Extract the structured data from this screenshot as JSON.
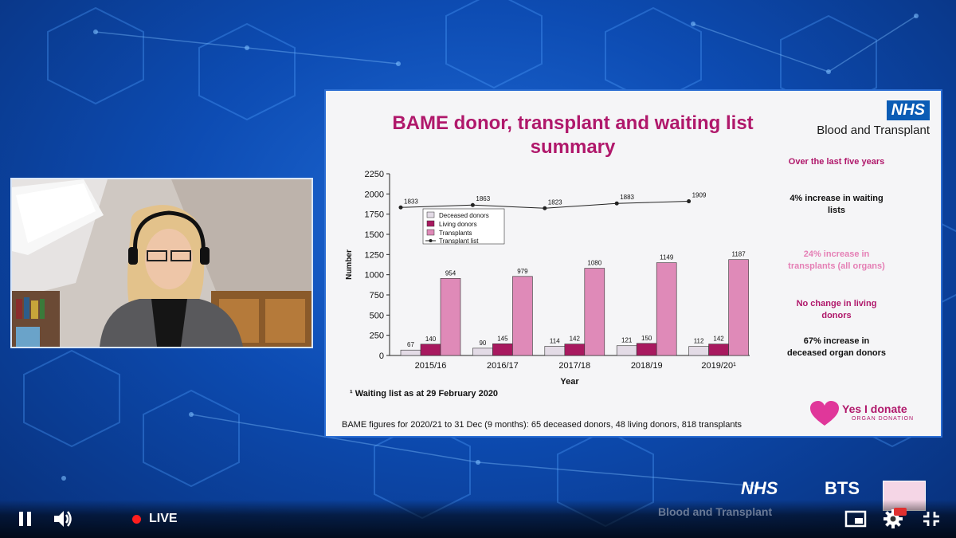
{
  "slide": {
    "title_line1": "BAME donor, transplant and waiting list",
    "title_line2": "summary",
    "logo": "NHS",
    "org": "Blood and Transplant",
    "facts": [
      {
        "text": "Over the last five years",
        "color": "#b0186b"
      },
      {
        "text": "4% increase in waiting lists",
        "color": "#111111"
      },
      {
        "text": "24% increase in transplants (all organs)",
        "color": "#e57fb5"
      },
      {
        "text": "No change in living donors",
        "color": "#b0186b"
      },
      {
        "text": "67% increase in deceased organ donors",
        "color": "#111111"
      }
    ],
    "footnote": "¹ Waiting list as at 29 February 2020",
    "bame_figures": "BAME figures for 2020/21 to 31 Dec (9 months): 65 deceased donors, 48 living donors, 818 transplants",
    "campaign_title": "Yes I donate",
    "campaign_sub": "ORGAN DONATION"
  },
  "chart_data": {
    "type": "bar",
    "categories": [
      "2015/16",
      "2016/17",
      "2017/18",
      "2018/19",
      "2019/20¹"
    ],
    "xlabel": "Year",
    "ylabel": "Number",
    "ylim": [
      0,
      2250
    ],
    "yticks": [
      0,
      250,
      500,
      750,
      1000,
      1250,
      1500,
      1750,
      2000,
      2250
    ],
    "series": [
      {
        "name": "Deceased donors",
        "values": [
          67,
          90,
          114,
          121,
          112
        ],
        "color": "#e3dbe6"
      },
      {
        "name": "Living donors",
        "values": [
          140,
          145,
          142,
          150,
          142
        ],
        "color": "#a8195f"
      },
      {
        "name": "Transplants",
        "values": [
          954,
          979,
          1080,
          1149,
          1187
        ],
        "color": "#df8ab8"
      }
    ],
    "line_series": {
      "name": "Transplant list",
      "values": [
        1833,
        1863,
        1823,
        1883,
        1909
      ],
      "color": "#222222"
    },
    "legend_position": "top-left"
  },
  "player": {
    "live_label": "LIVE",
    "bottom_brand_left": "NHS",
    "bottom_brand_sub": "Blood and Transplant",
    "bottom_brand_right": "BTS"
  },
  "icons": [
    "pause-icon",
    "volume-icon",
    "miniplayer-icon",
    "settings-icon",
    "exit-fullscreen-icon",
    "hd-badge-icon"
  ]
}
